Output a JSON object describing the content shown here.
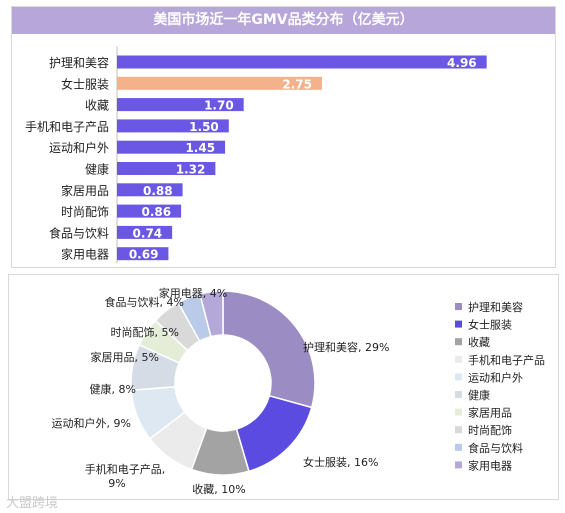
{
  "chart_data": [
    {
      "type": "bar",
      "orientation": "horizontal",
      "title": "美国市场近一年GMV品类分布（亿美元）",
      "categories": [
        "护理和美容",
        "女士服装",
        "收藏",
        "手机和电子产品",
        "运动和户外",
        "健康",
        "家居用品",
        "时尚配饰",
        "食品与饮料",
        "家用电器"
      ],
      "values": [
        4.96,
        2.75,
        1.7,
        1.5,
        1.45,
        1.32,
        0.88,
        0.86,
        0.74,
        0.69
      ],
      "value_labels": [
        "4.96",
        "2.75",
        "1.70",
        "1.50",
        "1.45",
        "1.32",
        "0.88",
        "0.86",
        "0.74",
        "0.69"
      ],
      "colors": {
        "default": "#6a57e3",
        "highlight": "#f3b18c",
        "highlight_index": 1
      },
      "xlim": [
        0,
        5.3
      ]
    },
    {
      "type": "pie",
      "variant": "donut",
      "labels": [
        "护理和美容",
        "女士服装",
        "收藏",
        "手机和电子产品",
        "运动和户外",
        "健康",
        "家居用品",
        "时尚配饰",
        "食品与饮料",
        "家用电器"
      ],
      "values": [
        29,
        16,
        10,
        9,
        9,
        8,
        5,
        5,
        4,
        4
      ],
      "slice_labels": [
        "护理和美容, 29%",
        "女士服装, 16%",
        "收藏, 10%",
        "手机和电子产品, 9%",
        "运动和户外, 9%",
        "健康, 8%",
        "家居用品, 5%",
        "时尚配饰, 5%",
        "食品与饮料, 4%",
        "家用电器, 4%"
      ],
      "colors": [
        "#9b8cc4",
        "#5b4be0",
        "#a3a3a3",
        "#ebebeb",
        "#dde8f3",
        "#d6dce6",
        "#e4edd8",
        "#d9d9d9",
        "#b9cbe8",
        "#b4a8d8"
      ],
      "legend": {
        "position": "right"
      }
    }
  ],
  "watermark": "大盟跨境"
}
